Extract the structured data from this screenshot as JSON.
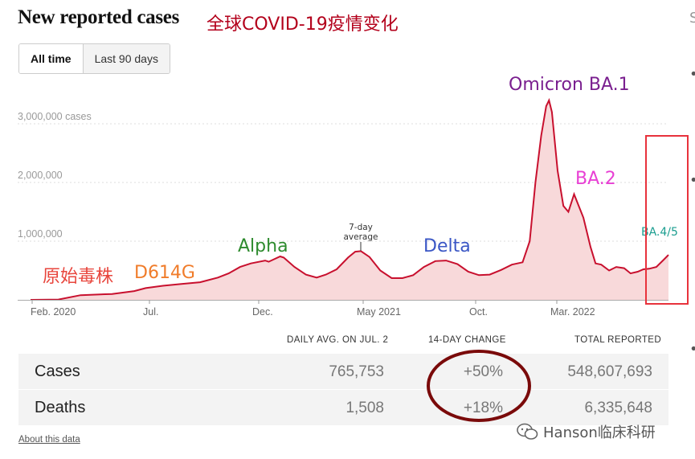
{
  "header": {
    "title": "New reported cases",
    "zh_title": "全球COVID-19疫情变化",
    "edge_char": "S",
    "edge_bullet": "•"
  },
  "tabs": [
    {
      "label": "All time",
      "active": true
    },
    {
      "label": "Last 90 days",
      "active": false
    }
  ],
  "chart_data": {
    "type": "area",
    "title": "",
    "xlabel": "",
    "ylabel": "",
    "x_ticks": [
      "Feb. 2020",
      "Jul.",
      "Dec.",
      "May 2021",
      "Oct.",
      "Mar. 2022"
    ],
    "y_ticks": [
      {
        "value": 1000000,
        "label": "1,000,000"
      },
      {
        "value": 2000000,
        "label": "2,000,000"
      },
      {
        "value": 3000000,
        "label": "3,000,000 cases"
      }
    ],
    "ylim": [
      0,
      3500000
    ],
    "xlim": [
      "2020-01-22",
      "2022-07-02"
    ],
    "grid": true,
    "colors": {
      "line": "#c8102e",
      "fill": "#f8d9da",
      "grid": "#dddddd"
    },
    "series": [
      {
        "x": [
          "2020-01-22",
          "2020-03-01",
          "2020-04-01",
          "2020-05-15",
          "2020-06-15",
          "2020-07-01",
          "2020-07-25",
          "2020-08-20",
          "2020-09-15",
          "2020-10-10",
          "2020-10-25",
          "2020-11-10",
          "2020-11-25",
          "2020-12-15",
          "2020-12-20",
          "2021-01-05",
          "2021-01-10",
          "2021-01-25",
          "2021-02-10",
          "2021-02-25",
          "2021-03-10",
          "2021-03-25",
          "2021-04-10",
          "2021-04-20",
          "2021-04-28",
          "2021-05-10",
          "2021-05-25",
          "2021-06-10",
          "2021-06-25",
          "2021-07-10",
          "2021-07-25",
          "2021-08-10",
          "2021-08-25",
          "2021-09-10",
          "2021-09-25",
          "2021-10-10",
          "2021-10-25",
          "2021-11-10",
          "2021-11-25",
          "2021-12-10",
          "2021-12-20",
          "2021-12-28",
          "2022-01-05",
          "2022-01-12",
          "2022-01-16",
          "2022-01-20",
          "2022-01-28",
          "2022-02-05",
          "2022-02-12",
          "2022-02-20",
          "2022-03-05",
          "2022-03-15",
          "2022-03-22",
          "2022-03-30",
          "2022-04-10",
          "2022-04-20",
          "2022-05-01",
          "2022-05-10",
          "2022-05-20",
          "2022-05-28",
          "2022-06-05",
          "2022-06-15",
          "2022-06-25",
          "2022-07-02"
        ],
        "values": [
          0,
          5000,
          80000,
          100000,
          150000,
          200000,
          240000,
          270000,
          300000,
          380000,
          450000,
          560000,
          620000,
          670000,
          650000,
          740000,
          720000,
          560000,
          430000,
          380000,
          430000,
          520000,
          720000,
          820000,
          830000,
          730000,
          500000,
          370000,
          370000,
          420000,
          560000,
          660000,
          670000,
          610000,
          480000,
          420000,
          430000,
          510000,
          600000,
          640000,
          1000000,
          2000000,
          2800000,
          3300000,
          3400000,
          3200000,
          2200000,
          1600000,
          1500000,
          1800000,
          1400000,
          900000,
          620000,
          600000,
          500000,
          560000,
          540000,
          450000,
          480000,
          520000,
          530000,
          560000,
          680000,
          765753
        ]
      }
    ],
    "annotations": [
      {
        "label": "原始毒株",
        "date": "2020-03-15",
        "color": "#e8453c"
      },
      {
        "label": "D614G",
        "date": "2020-06-10",
        "color": "#f07c2a"
      },
      {
        "label": "Alpha",
        "date": "2020-12-05",
        "color": "#2e8b2e"
      },
      {
        "label": "7-day",
        "date": "2021-05-01",
        "color": "#333333"
      },
      {
        "label": "average",
        "date": "2021-05-01",
        "color": "#333333"
      },
      {
        "label": "Delta",
        "date": "2021-08-25",
        "color": "#3a56c5"
      },
      {
        "label": "Omicron BA.1",
        "date": "2022-01-15",
        "color": "#7a1f8f"
      },
      {
        "label": "BA.2",
        "date": "2022-03-15",
        "color": "#e83fd4"
      },
      {
        "label": "BA.4/5",
        "date": "2022-06-25",
        "color": "#1a9d8f"
      }
    ],
    "highlight_box_color": "#e8323c"
  },
  "stats": {
    "headers": {
      "daily": "DAILY AVG. ON JUL. 2",
      "change": "14-DAY CHANGE",
      "total": "TOTAL REPORTED"
    },
    "rows": [
      {
        "label": "Cases",
        "daily": "765,753",
        "change": "+50%",
        "total": "548,607,693"
      },
      {
        "label": "Deaths",
        "daily": "1,508",
        "change": "+18%",
        "total": "6,335,648"
      }
    ],
    "circle_color": "#7a0a0a"
  },
  "footer": {
    "about": "About this data",
    "watermark": "Hanson临床科研"
  }
}
